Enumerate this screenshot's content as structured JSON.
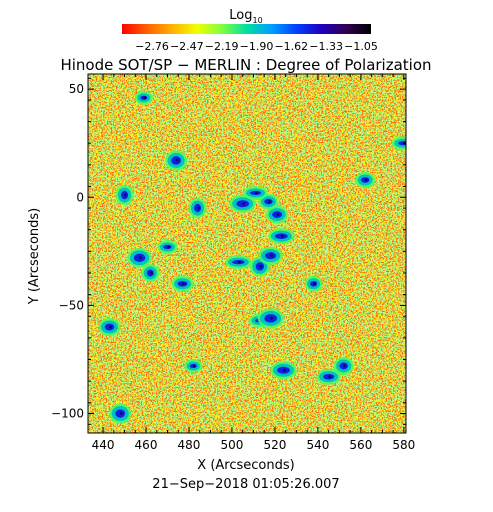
{
  "chart_data": {
    "type": "heatmap",
    "title": "Hinode SOT/SP − MERLIN : Degree of Polarization",
    "colorbar": {
      "label_base": "Log",
      "label_subscript": "10",
      "tick_labels": [
        "−2.76",
        "−2.47",
        "−2.19",
        "−1.90",
        "−1.62",
        "−1.33",
        "−1.05"
      ],
      "range": [
        -2.76,
        -1.05
      ],
      "colormap": [
        "#ff0000",
        "#ff6000",
        "#ffb000",
        "#f0ff00",
        "#80ff40",
        "#00e0a0",
        "#00a0ff",
        "#0040ff",
        "#2000c0",
        "#300050",
        "#000000"
      ]
    },
    "xlabel": "X (Arcseconds)",
    "ylabel": "Y (Arcseconds)",
    "x_ticks": [
      "440",
      "460",
      "480",
      "500",
      "520",
      "540",
      "560",
      "580"
    ],
    "y_ticks": [
      "50",
      "0",
      "−50",
      "−100"
    ],
    "xlim": [
      433,
      581
    ],
    "ylim": [
      -109,
      57
    ],
    "x_tick_values": [
      440,
      460,
      480,
      500,
      520,
      540,
      560,
      580
    ],
    "y_tick_values": [
      50,
      0,
      -50,
      -100
    ],
    "footer": "21−Sep−2018 01:05:26.007",
    "grid": false,
    "high_polarization_features": [
      {
        "x": 459,
        "y": 46
      },
      {
        "x": 474,
        "y": 17
      },
      {
        "x": 505,
        "y": -3
      },
      {
        "x": 517,
        "y": -2
      },
      {
        "x": 511,
        "y": 2
      },
      {
        "x": 484,
        "y": -5
      },
      {
        "x": 521,
        "y": -8
      },
      {
        "x": 523,
        "y": -18
      },
      {
        "x": 470,
        "y": -23
      },
      {
        "x": 457,
        "y": -28
      },
      {
        "x": 462,
        "y": -35
      },
      {
        "x": 477,
        "y": -40
      },
      {
        "x": 503,
        "y": -30
      },
      {
        "x": 513,
        "y": -32
      },
      {
        "x": 518,
        "y": -27
      },
      {
        "x": 538,
        "y": -40
      },
      {
        "x": 513,
        "y": -57
      },
      {
        "x": 518,
        "y": -56
      },
      {
        "x": 552,
        "y": -78
      },
      {
        "x": 545,
        "y": -83
      },
      {
        "x": 482,
        "y": -78
      },
      {
        "x": 448,
        "y": -100
      },
      {
        "x": 524,
        "y": -80
      },
      {
        "x": 562,
        "y": 8
      },
      {
        "x": 580,
        "y": 25
      },
      {
        "x": 450,
        "y": 1
      },
      {
        "x": 443,
        "y": -60
      }
    ]
  }
}
